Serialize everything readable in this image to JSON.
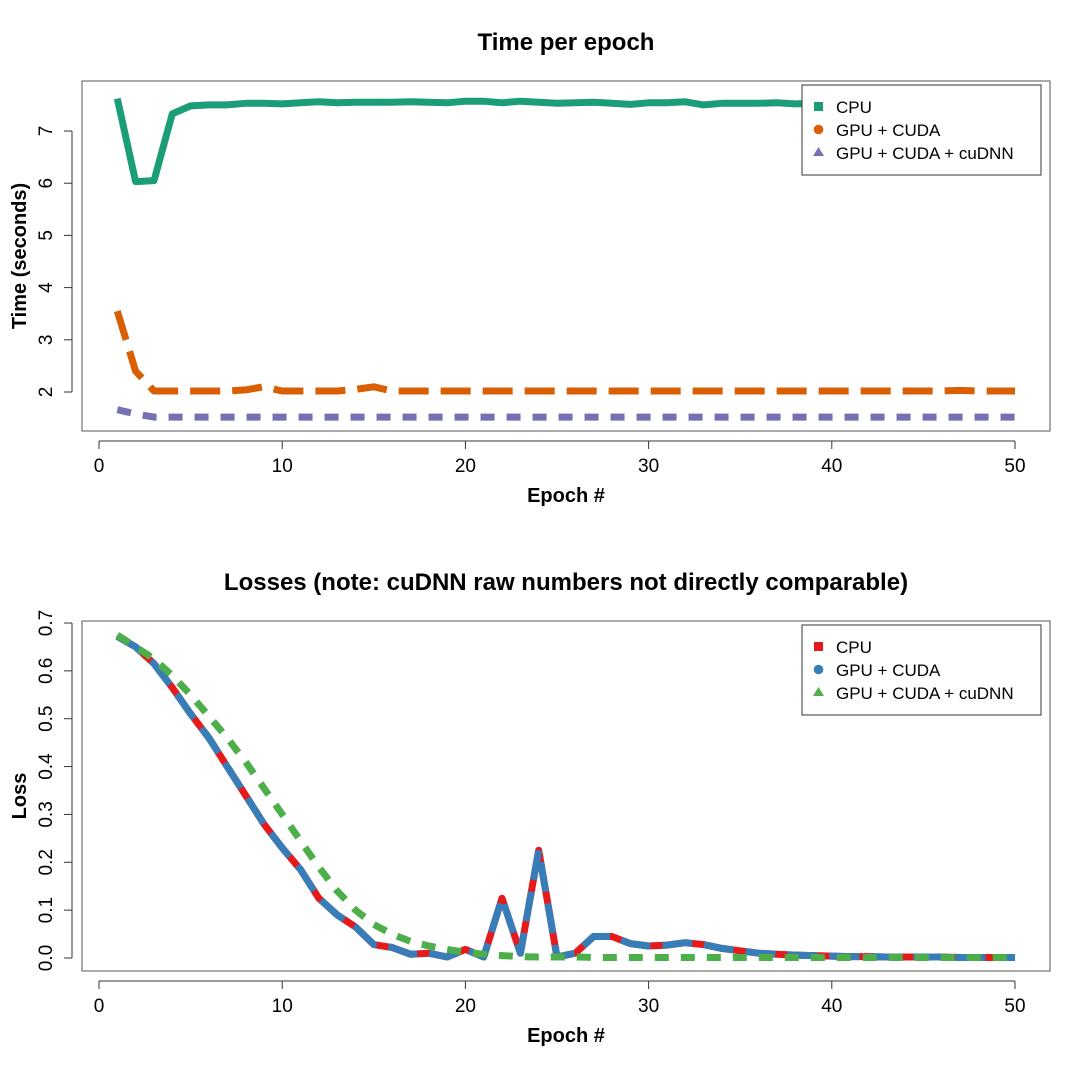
{
  "chart_data": [
    {
      "type": "line",
      "title": "Time per epoch",
      "xlabel": "Epoch #",
      "ylabel": "Time (seconds)",
      "xlim": [
        0,
        50
      ],
      "ylim": [
        1.3,
        7.85
      ],
      "xticks": [
        0,
        10,
        20,
        30,
        40,
        50
      ],
      "yticks": [
        2,
        3,
        4,
        5,
        6,
        7
      ],
      "grid": false,
      "legend_position": "top-right",
      "series": [
        {
          "name": "CPU",
          "color": "#1b9e77",
          "dash": "solid",
          "marker": "square",
          "x": [
            1,
            2,
            3,
            4,
            5,
            6,
            7,
            8,
            9,
            10,
            11,
            12,
            13,
            14,
            15,
            16,
            17,
            18,
            19,
            20,
            21,
            22,
            23,
            24,
            25,
            26,
            27,
            28,
            29,
            30,
            31,
            32,
            33,
            34,
            35,
            36,
            37,
            38,
            39,
            40,
            41,
            42,
            43,
            44,
            45,
            46,
            47,
            48,
            49,
            50
          ],
          "values": [
            7.62,
            6.03,
            6.05,
            7.33,
            7.48,
            7.5,
            7.5,
            7.53,
            7.53,
            7.52,
            7.54,
            7.56,
            7.54,
            7.55,
            7.55,
            7.55,
            7.56,
            7.55,
            7.54,
            7.57,
            7.57,
            7.54,
            7.57,
            7.55,
            7.53,
            7.54,
            7.55,
            7.53,
            7.51,
            7.54,
            7.54,
            7.56,
            7.5,
            7.53,
            7.53,
            7.53,
            7.54,
            7.52,
            7.53,
            7.53,
            7.53,
            7.53,
            7.53,
            7.53,
            7.53,
            7.53,
            7.53,
            7.53,
            7.53,
            7.53
          ]
        },
        {
          "name": "GPU + CUDA",
          "color": "#d95f02",
          "dash": "dashed",
          "marker": "circle",
          "x": [
            1,
            2,
            3,
            4,
            5,
            6,
            7,
            8,
            9,
            10,
            11,
            12,
            13,
            14,
            15,
            16,
            17,
            18,
            19,
            20,
            21,
            22,
            23,
            24,
            25,
            26,
            27,
            28,
            29,
            30,
            31,
            32,
            33,
            34,
            35,
            36,
            37,
            38,
            39,
            40,
            41,
            42,
            43,
            44,
            45,
            46,
            47,
            48,
            49,
            50
          ],
          "values": [
            3.55,
            2.4,
            2.02,
            2.02,
            2.02,
            2.02,
            2.02,
            2.04,
            2.1,
            2.02,
            2.02,
            2.02,
            2.02,
            2.05,
            2.1,
            2.02,
            2.02,
            2.02,
            2.02,
            2.02,
            2.02,
            2.02,
            2.02,
            2.02,
            2.02,
            2.02,
            2.02,
            2.02,
            2.02,
            2.02,
            2.02,
            2.02,
            2.02,
            2.02,
            2.02,
            2.02,
            2.02,
            2.02,
            2.02,
            2.02,
            2.02,
            2.02,
            2.02,
            2.02,
            2.02,
            2.02,
            2.03,
            2.02,
            2.02,
            2.02
          ]
        },
        {
          "name": "GPU + CUDA + cuDNN",
          "color": "#7570b3",
          "dash": "dotted",
          "marker": "triangle",
          "x": [
            1,
            2,
            3,
            4,
            5,
            6,
            7,
            8,
            9,
            10,
            11,
            12,
            13,
            14,
            15,
            16,
            17,
            18,
            19,
            20,
            21,
            22,
            23,
            24,
            25,
            26,
            27,
            28,
            29,
            30,
            31,
            32,
            33,
            34,
            35,
            36,
            37,
            38,
            39,
            40,
            41,
            42,
            43,
            44,
            45,
            46,
            47,
            48,
            49,
            50
          ],
          "values": [
            1.66,
            1.58,
            1.52,
            1.52,
            1.52,
            1.52,
            1.52,
            1.52,
            1.52,
            1.52,
            1.52,
            1.52,
            1.52,
            1.52,
            1.52,
            1.52,
            1.52,
            1.52,
            1.52,
            1.52,
            1.52,
            1.52,
            1.52,
            1.52,
            1.52,
            1.52,
            1.52,
            1.52,
            1.52,
            1.52,
            1.52,
            1.52,
            1.52,
            1.52,
            1.52,
            1.52,
            1.52,
            1.52,
            1.52,
            1.52,
            1.52,
            1.52,
            1.52,
            1.52,
            1.52,
            1.52,
            1.52,
            1.52,
            1.52,
            1.52
          ]
        }
      ]
    },
    {
      "type": "line",
      "title": "Losses (note: cuDNN raw numbers not directly comparable)",
      "xlabel": "Epoch #",
      "ylabel": "Loss",
      "xlim": [
        0,
        50
      ],
      "ylim": [
        -0.025,
        0.7
      ],
      "xticks": [
        0,
        10,
        20,
        30,
        40,
        50
      ],
      "yticks": [
        "0.0",
        "0.1",
        "0.2",
        "0.3",
        "0.4",
        "0.5",
        "0.6",
        "0.7"
      ],
      "grid": false,
      "legend_position": "top-right",
      "series": [
        {
          "name": "CPU",
          "color": "#e41a1c",
          "dash": "solid",
          "marker": "square",
          "x": [
            1,
            2,
            3,
            4,
            5,
            6,
            7,
            8,
            9,
            10,
            11,
            12,
            13,
            14,
            15,
            16,
            17,
            18,
            19,
            20,
            21,
            22,
            23,
            24,
            25,
            26,
            27,
            28,
            29,
            30,
            31,
            32,
            33,
            34,
            35,
            36,
            37,
            38,
            39,
            40,
            41,
            42,
            43,
            44,
            45,
            46,
            47,
            48,
            49,
            50
          ],
          "values": [
            0.672,
            0.65,
            0.615,
            0.565,
            0.51,
            0.46,
            0.4,
            0.34,
            0.28,
            0.23,
            0.185,
            0.125,
            0.09,
            0.065,
            0.028,
            0.022,
            0.008,
            0.01,
            0.002,
            0.018,
            0.002,
            0.125,
            0.01,
            0.225,
            0.002,
            0.01,
            0.045,
            0.045,
            0.03,
            0.025,
            0.027,
            0.032,
            0.028,
            0.02,
            0.015,
            0.01,
            0.008,
            0.006,
            0.005,
            0.004,
            0.003,
            0.003,
            0.002,
            0.002,
            0.002,
            0.002,
            0.001,
            0.001,
            0.001,
            0.001
          ]
        },
        {
          "name": "GPU + CUDA",
          "color": "#377eb8",
          "dash": "dashed",
          "marker": "circle",
          "x": [
            1,
            2,
            3,
            4,
            5,
            6,
            7,
            8,
            9,
            10,
            11,
            12,
            13,
            14,
            15,
            16,
            17,
            18,
            19,
            20,
            21,
            22,
            23,
            24,
            25,
            26,
            27,
            28,
            29,
            30,
            31,
            32,
            33,
            34,
            35,
            36,
            37,
            38,
            39,
            40,
            41,
            42,
            43,
            44,
            45,
            46,
            47,
            48,
            49,
            50
          ],
          "values": [
            0.672,
            0.65,
            0.615,
            0.565,
            0.51,
            0.46,
            0.4,
            0.34,
            0.28,
            0.23,
            0.185,
            0.125,
            0.09,
            0.065,
            0.028,
            0.022,
            0.008,
            0.01,
            0.002,
            0.018,
            0.002,
            0.125,
            0.01,
            0.225,
            0.002,
            0.01,
            0.045,
            0.045,
            0.03,
            0.025,
            0.027,
            0.032,
            0.028,
            0.02,
            0.015,
            0.01,
            0.008,
            0.006,
            0.005,
            0.004,
            0.003,
            0.003,
            0.002,
            0.002,
            0.002,
            0.002,
            0.001,
            0.001,
            0.001,
            0.001
          ]
        },
        {
          "name": "GPU + CUDA + cuDNN",
          "color": "#4daf4a",
          "dash": "dotted",
          "marker": "triangle",
          "x": [
            1,
            2,
            3,
            4,
            5,
            6,
            7,
            8,
            9,
            10,
            11,
            12,
            13,
            14,
            15,
            16,
            17,
            18,
            19,
            20,
            21,
            22,
            23,
            24,
            25,
            26,
            27,
            28,
            29,
            30,
            31,
            32,
            33,
            34,
            35,
            36,
            37,
            38,
            39,
            40,
            41,
            42,
            43,
            44,
            45,
            46,
            47,
            48,
            49,
            50
          ],
          "values": [
            0.675,
            0.65,
            0.625,
            0.59,
            0.55,
            0.505,
            0.46,
            0.41,
            0.355,
            0.3,
            0.245,
            0.19,
            0.14,
            0.1,
            0.07,
            0.05,
            0.035,
            0.025,
            0.018,
            0.012,
            0.008,
            0.005,
            0.003,
            0.002,
            0.002,
            0.002,
            0.001,
            0.001,
            0.001,
            0.001,
            0.001,
            0.001,
            0.001,
            0.001,
            0.001,
            0.001,
            0.001,
            0.001,
            0.001,
            0.001,
            0.001,
            0.001,
            0.001,
            0.001,
            0.001,
            0.001,
            0.001,
            0.001,
            0.001,
            0.001
          ]
        }
      ]
    }
  ]
}
